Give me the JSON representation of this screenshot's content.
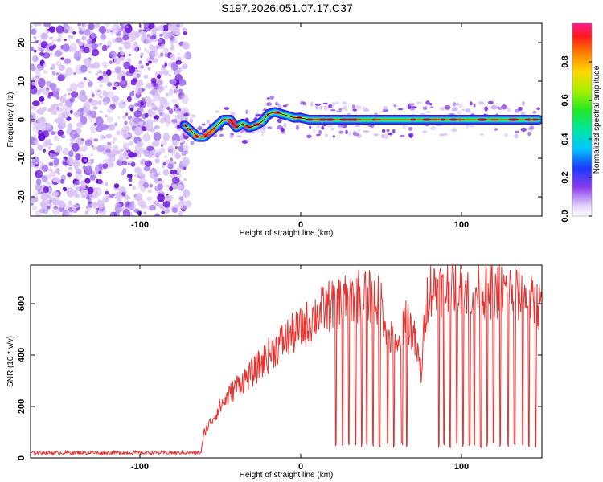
{
  "title": "S197.2026.051.07.17.C37",
  "colors": {
    "snr_line": "#e8322f",
    "track_line": "#000000",
    "noise_dark": "#6a12d8",
    "noise_light": "#d9c2f5"
  },
  "chart_data": [
    {
      "type": "heatmap",
      "name": "spectrogram",
      "xlabel": "Height of straight line (km)",
      "ylabel": "Frequency (Hz)",
      "xlim": [
        -168,
        150
      ],
      "ylim": [
        -25,
        25
      ],
      "xticks": [
        -100,
        0,
        100
      ],
      "yticks": [
        -20,
        -10,
        0,
        10,
        20
      ],
      "noise_region_x": [
        -168,
        -70
      ],
      "track": {
        "x": [
          -72,
          -68,
          -64,
          -60,
          -56,
          -52,
          -48,
          -44,
          -40,
          -36,
          -32,
          -28,
          -24,
          -20,
          -16,
          -12,
          -8,
          -4,
          0,
          5,
          10,
          20,
          30,
          40,
          50,
          60,
          80,
          100,
          120,
          148
        ],
        "y": [
          -1.5,
          -3,
          -4.5,
          -4.5,
          -3,
          -1.5,
          0,
          0,
          -2,
          -1,
          -2,
          -1.5,
          -0.5,
          1.5,
          2,
          1.5,
          1,
          0.5,
          0.5,
          0,
          0,
          0,
          0,
          0,
          0,
          0,
          0,
          0,
          0,
          0
        ]
      },
      "colorbar": {
        "label": "Normalized spectral amplitude",
        "ticks": [
          0.0,
          0.2,
          0.4,
          0.6,
          0.8
        ],
        "tick_labels": [
          "0.0",
          "0.2",
          "0.4",
          "0.6",
          "0.8"
        ],
        "range": [
          0,
          1
        ]
      }
    },
    {
      "type": "line",
      "name": "snr",
      "xlabel": "Height of straight line (km)",
      "ylabel": "SNR (10 * v/v)",
      "xlim": [
        -168,
        150
      ],
      "ylim": [
        0,
        750
      ],
      "xticks": [
        -100,
        0,
        100
      ],
      "yticks": [
        0,
        200,
        400,
        600
      ],
      "envelope": {
        "x": [
          -168,
          -62,
          -60,
          -50,
          -40,
          -30,
          -20,
          -10,
          0,
          10,
          20,
          30,
          40,
          50,
          55,
          60,
          65,
          70,
          75,
          78,
          80,
          90,
          100,
          110,
          120,
          130,
          140,
          150
        ],
        "y": [
          20,
          20,
          100,
          200,
          280,
          330,
          400,
          460,
          500,
          560,
          600,
          620,
          640,
          600,
          480,
          400,
          560,
          480,
          330,
          600,
          660,
          660,
          670,
          650,
          650,
          650,
          620,
          580
        ]
      },
      "dropouts": [
        22,
        26,
        30,
        34,
        38,
        41,
        45,
        49,
        54,
        58,
        63,
        66,
        86,
        89,
        93,
        97,
        101,
        105,
        108,
        112,
        116,
        120,
        124,
        129,
        133,
        138,
        142,
        146
      ],
      "dropout_level": 40
    }
  ]
}
